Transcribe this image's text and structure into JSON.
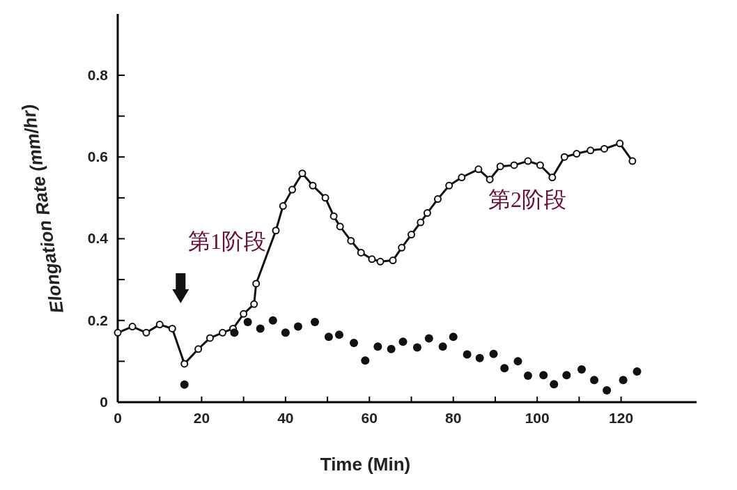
{
  "chart_data": {
    "type": "line",
    "xlabel": "Time (Min)",
    "ylabel": "Elongation Rate (mm/hr)",
    "xlim": [
      0,
      138
    ],
    "ylim": [
      0,
      0.95
    ],
    "xticks": [
      0,
      {
        "value": 10,
        "label": null
      },
      20,
      {
        "value": 30,
        "label": null
      },
      40,
      {
        "value": 50,
        "label": null
      },
      60,
      {
        "value": 70,
        "label": null
      },
      80,
      {
        "value": 90,
        "label": null
      },
      100,
      {
        "value": 110,
        "label": null
      },
      120
    ],
    "yticks": [
      0,
      {
        "value": 0.1,
        "label": null
      },
      0.2,
      {
        "value": 0.3,
        "label": null
      },
      0.4,
      {
        "value": 0.5,
        "label": null
      },
      0.6,
      {
        "value": 0.7,
        "label": null
      },
      0.8
    ],
    "grid": false,
    "marker": "circle",
    "line_style": "solid",
    "series": [
      {
        "type": "line",
        "color": "#111111",
        "x": [
          0,
          3.5,
          6.8,
          10,
          13,
          15.9,
          19.2,
          22,
          25,
          27.5,
          30,
          32.5,
          33,
          37.7,
          39.4,
          41.6,
          44,
          46.5,
          49.5,
          51.5,
          53,
          55.6,
          58,
          60.6,
          62.6,
          65.6,
          67.7,
          70,
          72.2,
          73.8,
          76.3,
          79,
          82,
          86,
          88.7,
          91.2,
          94.5,
          97.8,
          100.7,
          103.6,
          106.5,
          109.4,
          112.7,
          116,
          119.7,
          122.7
        ],
        "values": [
          0.17,
          0.185,
          0.17,
          0.19,
          0.18,
          0.094,
          0.13,
          0.157,
          0.17,
          0.18,
          0.216,
          0.24,
          0.29,
          0.42,
          0.48,
          0.52,
          0.56,
          0.53,
          0.5,
          0.455,
          0.43,
          0.395,
          0.366,
          0.35,
          0.344,
          0.347,
          0.378,
          0.41,
          0.44,
          0.463,
          0.497,
          0.53,
          0.55,
          0.57,
          0.545,
          0.577,
          0.58,
          0.59,
          0.58,
          0.55,
          0.6,
          0.608,
          0.616,
          0.62,
          0.633,
          0.59
        ]
      },
      {
        "type": "scatter",
        "color": "#111111",
        "x": [
          15.9,
          27.8,
          31,
          34,
          37,
          40,
          43,
          47,
          50.3,
          52.8,
          56.3,
          59,
          62,
          65.2,
          68,
          71.4,
          74.2,
          77.5,
          80,
          83.3,
          86.3,
          89.6,
          92.2,
          95.4,
          97.8,
          101.5,
          104,
          107,
          110.6,
          113.6,
          116.6,
          120.5,
          123.8
        ],
        "values": [
          0.043,
          0.17,
          0.196,
          0.18,
          0.2,
          0.17,
          0.185,
          0.196,
          0.16,
          0.165,
          0.145,
          0.102,
          0.136,
          0.13,
          0.148,
          0.134,
          0.156,
          0.136,
          0.16,
          0.117,
          0.108,
          0.118,
          0.083,
          0.1,
          0.065,
          0.066,
          0.044,
          0.066,
          0.08,
          0.054,
          0.029,
          0.054,
          0.075
        ]
      }
    ],
    "annotations": [
      "第1阶段",
      "第2阶段"
    ]
  }
}
